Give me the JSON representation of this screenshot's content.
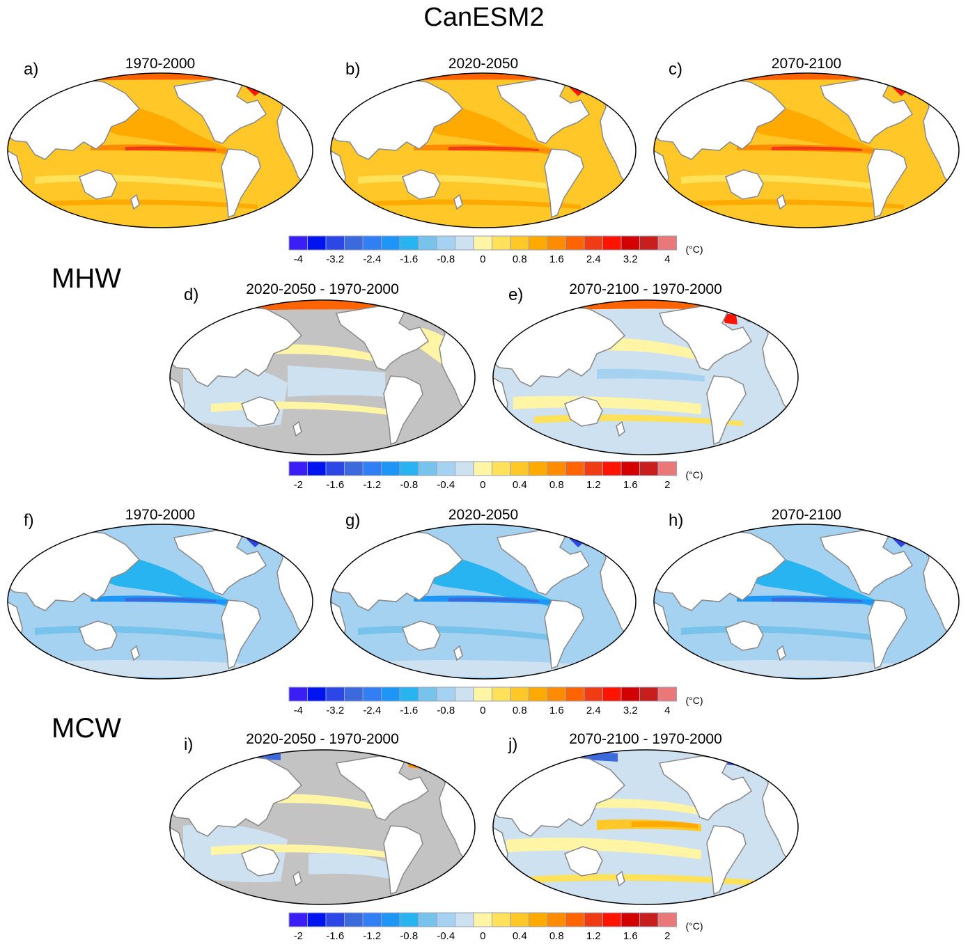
{
  "title": "CanESM2",
  "row_labels": {
    "mhw": "MHW",
    "mcw": "MCW"
  },
  "palette": [
    "#3a1ef5",
    "#0014f0",
    "#2d46e6",
    "#3c69dc",
    "#327ff5",
    "#1e96f5",
    "#28b4f0",
    "#78c3eb",
    "#a5d2f0",
    "#cde1f0",
    "#fff5a5",
    "#ffe15a",
    "#ffc828",
    "#ffaa00",
    "#ff8c00",
    "#ff6400",
    "#f03c14",
    "#ff1400",
    "#d20000",
    "#c81e1e",
    "#eb7878"
  ],
  "land_color": "#ffffff",
  "coast_color": "#8c8c8c",
  "neutral_color": "#c3c3c3",
  "panels": [
    {
      "letter": "a)",
      "title": "1970-2000",
      "kind": "mhw_abs"
    },
    {
      "letter": "b)",
      "title": "2020-2050",
      "kind": "mhw_abs"
    },
    {
      "letter": "c)",
      "title": "2070-2100",
      "kind": "mhw_abs"
    },
    {
      "letter": "d)",
      "title": "2020-2050 - 1970-2000",
      "kind": "mhw_diff1"
    },
    {
      "letter": "e)",
      "title": "2070-2100 - 1970-2000",
      "kind": "mhw_diff2"
    },
    {
      "letter": "f)",
      "title": "1970-2000",
      "kind": "mcw_abs"
    },
    {
      "letter": "g)",
      "title": "2020-2050",
      "kind": "mcw_abs"
    },
    {
      "letter": "h)",
      "title": "2070-2100",
      "kind": "mcw_abs"
    },
    {
      "letter": "i)",
      "title": "2020-2050 - 1970-2000",
      "kind": "mcw_diff1"
    },
    {
      "letter": "j)",
      "title": "2070-2100 - 1970-2000",
      "kind": "mcw_diff2"
    }
  ],
  "colorbars": [
    {
      "ticks": [
        "-4",
        "-3.2",
        "-2.4",
        "-1.6",
        "-0.8",
        "0",
        "0.8",
        "1.6",
        "2.4",
        "3.2",
        "4"
      ],
      "unit": "(°C)"
    },
    {
      "ticks": [
        "-2",
        "-1.6",
        "-1.2",
        "-0.8",
        "-0.4",
        "0",
        "0.4",
        "0.8",
        "1.2",
        "1.6",
        "2"
      ],
      "unit": "(°C)"
    },
    {
      "ticks": [
        "-4",
        "-3.2",
        "-2.4",
        "-1.6",
        "-0.8",
        "0",
        "0.8",
        "1.6",
        "2.4",
        "3.2",
        "4"
      ],
      "unit": "(°C)"
    },
    {
      "ticks": [
        "-2",
        "-1.6",
        "-1.2",
        "-0.8",
        "-0.4",
        "0",
        "0.4",
        "0.8",
        "1.2",
        "1.6",
        "2"
      ],
      "unit": "(°C)"
    }
  ]
}
